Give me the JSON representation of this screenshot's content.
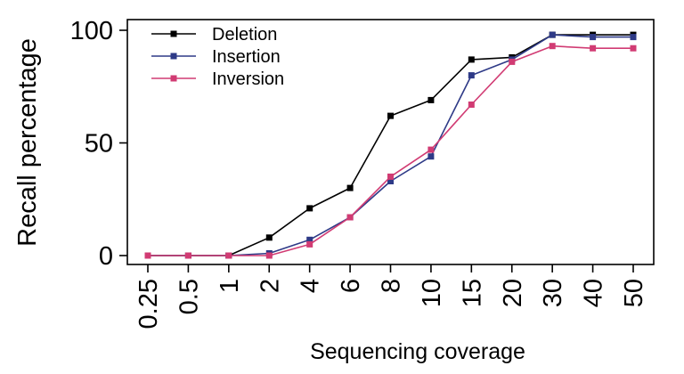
{
  "chart_data": {
    "type": "line",
    "xlabel": "Sequencing coverage",
    "ylabel": "Recall percentage",
    "categories": [
      "0.25",
      "0.5",
      "1",
      "2",
      "4",
      "6",
      "8",
      "10",
      "15",
      "20",
      "30",
      "40",
      "50"
    ],
    "yticks": [
      0,
      50,
      100
    ],
    "ylim": [
      0,
      100
    ],
    "grid": false,
    "legend_position": "top-left",
    "series": [
      {
        "name": "Deletion",
        "color": "#000000",
        "values": [
          0,
          0,
          0,
          8,
          21,
          30,
          62,
          69,
          87,
          88,
          98,
          98,
          98
        ]
      },
      {
        "name": "Insertion",
        "color": "#2e3a87",
        "values": [
          0,
          0,
          0,
          1,
          7,
          17,
          33,
          44,
          80,
          87,
          98,
          97,
          97
        ]
      },
      {
        "name": "Inversion",
        "color": "#d13b73",
        "values": [
          0,
          0,
          0,
          0,
          5,
          17,
          35,
          47,
          67,
          86,
          93,
          92,
          92
        ]
      }
    ]
  }
}
